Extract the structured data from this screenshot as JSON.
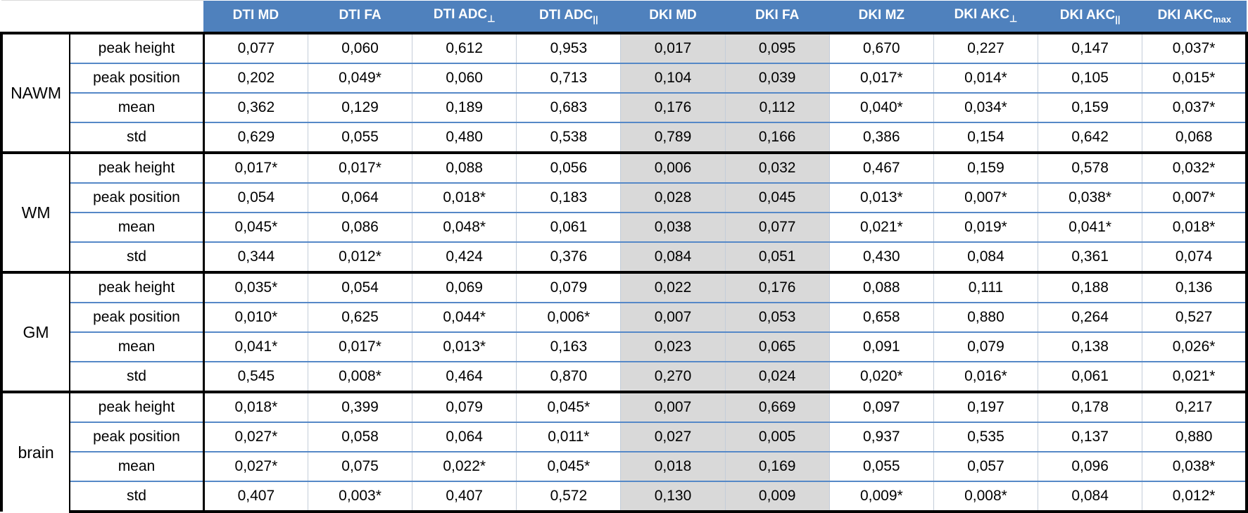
{
  "table": {
    "corner_label": "",
    "columns": [
      {
        "label": "DTI MD",
        "sub": "",
        "shaded": false
      },
      {
        "label": "DTI FA",
        "sub": "",
        "shaded": false
      },
      {
        "label": "DTI ADC",
        "sub": "⊥",
        "shaded": false
      },
      {
        "label": "DTI ADC",
        "sub": "||",
        "shaded": false
      },
      {
        "label": "DKI MD",
        "sub": "",
        "shaded": true
      },
      {
        "label": "DKI FA",
        "sub": "",
        "shaded": true
      },
      {
        "label": "DKI MZ",
        "sub": "",
        "shaded": false
      },
      {
        "label": "DKI AKC",
        "sub": "⊥",
        "shaded": false
      },
      {
        "label": "DKI AKC",
        "sub": "||",
        "shaded": false
      },
      {
        "label": "DKI AKC",
        "sub": "max",
        "shaded": false
      }
    ],
    "groups": [
      {
        "region": "NAWM",
        "rows": [
          {
            "label": "peak height",
            "values": [
              "0,077",
              "0,060",
              "0,612",
              "0,953",
              "0,017",
              "0,095",
              "0,670",
              "0,227",
              "0,147",
              "0,037*"
            ]
          },
          {
            "label": "peak position",
            "values": [
              "0,202",
              "0,049*",
              "0,060",
              "0,713",
              "0,104",
              "0,039",
              "0,017*",
              "0,014*",
              "0,105",
              "0,015*"
            ]
          },
          {
            "label": "mean",
            "values": [
              "0,362",
              "0,129",
              "0,189",
              "0,683",
              "0,176",
              "0,112",
              "0,040*",
              "0,034*",
              "0,159",
              "0,037*"
            ]
          },
          {
            "label": "std",
            "values": [
              "0,629",
              "0,055",
              "0,480",
              "0,538",
              "0,789",
              "0,166",
              "0,386",
              "0,154",
              "0,642",
              "0,068"
            ]
          }
        ]
      },
      {
        "region": "WM",
        "rows": [
          {
            "label": "peak height",
            "values": [
              "0,017*",
              "0,017*",
              "0,088",
              "0,056",
              "0,006",
              "0,032",
              "0,467",
              "0,159",
              "0,578",
              "0,032*"
            ]
          },
          {
            "label": "peak position",
            "values": [
              "0,054",
              "0,064",
              "0,018*",
              "0,183",
              "0,028",
              "0,045",
              "0,013*",
              "0,007*",
              "0,038*",
              "0,007*"
            ]
          },
          {
            "label": "mean",
            "values": [
              "0,045*",
              "0,086",
              "0,048*",
              "0,061",
              "0,038",
              "0,077",
              "0,021*",
              "0,019*",
              "0,041*",
              "0,018*"
            ]
          },
          {
            "label": "std",
            "values": [
              "0,344",
              "0,012*",
              "0,424",
              "0,376",
              "0,084",
              "0,051",
              "0,430",
              "0,084",
              "0,361",
              "0,074"
            ]
          }
        ]
      },
      {
        "region": "GM",
        "rows": [
          {
            "label": "peak height",
            "values": [
              "0,035*",
              "0,054",
              "0,069",
              "0,079",
              "0,022",
              "0,176",
              "0,088",
              "0,111",
              "0,188",
              "0,136"
            ]
          },
          {
            "label": "peak position",
            "values": [
              "0,010*",
              "0,625",
              "0,044*",
              "0,006*",
              "0,007",
              "0,053",
              "0,658",
              "0,880",
              "0,264",
              "0,527"
            ]
          },
          {
            "label": "mean",
            "values": [
              "0,041*",
              "0,017*",
              "0,013*",
              "0,163",
              "0,023",
              "0,065",
              "0,091",
              "0,079",
              "0,138",
              "0,026*"
            ]
          },
          {
            "label": "std",
            "values": [
              "0,545",
              "0,008*",
              "0,464",
              "0,870",
              "0,270",
              "0,024",
              "0,020*",
              "0,016*",
              "0,061",
              "0,021*"
            ]
          }
        ]
      },
      {
        "region": "brain",
        "rows": [
          {
            "label": "peak height",
            "values": [
              "0,018*",
              "0,399",
              "0,079",
              "0,045*",
              "0,007",
              "0,669",
              "0,097",
              "0,197",
              "0,178",
              "0,217"
            ]
          },
          {
            "label": "peak position",
            "values": [
              "0,027*",
              "0,058",
              "0,064",
              "0,011*",
              "0,027",
              "0,005",
              "0,937",
              "0,535",
              "0,137",
              "0,880"
            ]
          },
          {
            "label": "mean",
            "values": [
              "0,027*",
              "0,075",
              "0,022*",
              "0,045*",
              "0,018",
              "0,169",
              "0,055",
              "0,057",
              "0,096",
              "0,038*"
            ]
          },
          {
            "label": "std",
            "values": [
              "0,407",
              "0,003*",
              "0,407",
              "0,572",
              "0,130",
              "0,009",
              "0,009*",
              "0,008*",
              "0,084",
              "0,012*"
            ]
          }
        ]
      }
    ]
  },
  "colors": {
    "header_bg": "#4f81bd",
    "header_text": "#ffffff",
    "shaded_column_bg": "#d9d9d9",
    "row_separator": "#5588c7",
    "column_separator": "#c4cdd9",
    "group_border": "#000000"
  }
}
